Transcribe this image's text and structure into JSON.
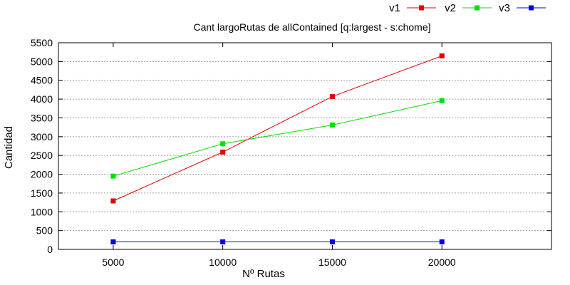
{
  "chart_data": {
    "type": "line",
    "title": "Cant largoRutas de allContained [q:largest - s:chome]",
    "xlabel": "Nº Rutas",
    "ylabel": "Cantidad",
    "x": [
      5000,
      10000,
      15000,
      20000
    ],
    "xlim": [
      2500,
      25000
    ],
    "ylim": [
      0,
      5500
    ],
    "x_ticks": [
      5000,
      10000,
      15000,
      20000
    ],
    "y_ticks": [
      0,
      500,
      1000,
      1500,
      2000,
      2500,
      3000,
      3500,
      4000,
      4500,
      5000,
      5500
    ],
    "grid": true,
    "legend_placement": "top-right",
    "series": [
      {
        "name": "v1",
        "color": "#e00000",
        "values": [
          1290,
          2590,
          4070,
          5150
        ]
      },
      {
        "name": "v2",
        "color": "#00e000",
        "values": [
          1950,
          2810,
          3310,
          3960
        ]
      },
      {
        "name": "v3",
        "color": "#0000e0",
        "values": [
          200,
          200,
          200,
          200
        ]
      }
    ]
  }
}
